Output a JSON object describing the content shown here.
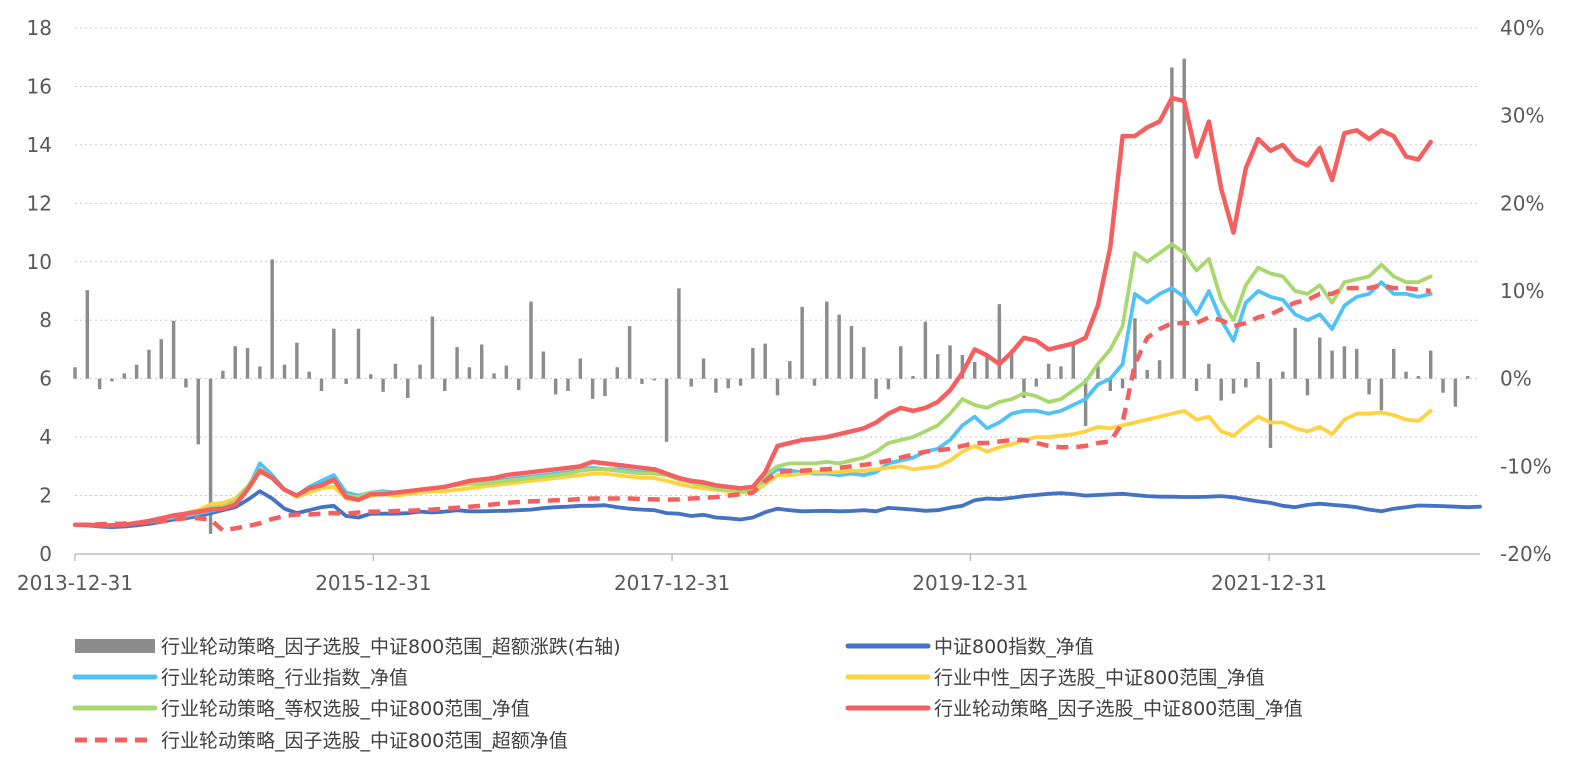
{
  "chart_data": {
    "type": "line",
    "x_start": "2013-12-31",
    "x_end": "2023-05-31",
    "x_tick_labels": [
      "2013-12-31",
      "2015-12-31",
      "2017-12-31",
      "2019-12-31",
      "2021-12-31"
    ],
    "x_tick_dates": [
      "2013-12-31",
      "2015-12-31",
      "2017-12-31",
      "2019-12-31",
      "2021-12-31"
    ],
    "ylim": [
      0,
      18
    ],
    "y_ticks": [
      0,
      2,
      4,
      6,
      8,
      10,
      12,
      14,
      16,
      18
    ],
    "y_tick_labels": [
      "0",
      "2",
      "4",
      "6",
      "8",
      "10",
      "12",
      "14",
      "16",
      "18"
    ],
    "y2lim": [
      -0.2,
      0.4
    ],
    "y2_ticks": [
      -0.2,
      -0.1,
      0,
      0.1,
      0.2,
      0.3,
      0.4
    ],
    "y2_tick_labels": [
      "-20%",
      "-10%",
      "0%",
      "10%",
      "20%",
      "30%",
      "40%"
    ],
    "grid": "horizontal-dotted",
    "legend_position": "bottom",
    "bars": {
      "name": "行业轮动策略_因子选股_中证800范围_超额涨跌(右轴)",
      "color": "#8c8c8c",
      "axis": "right",
      "values": [
        0.013,
        0.101,
        -0.012,
        -0.003,
        0.006,
        0.016,
        0.033,
        0.045,
        0.066,
        -0.01,
        -0.075,
        -0.177,
        0.009,
        0.037,
        0.035,
        0.014,
        0.136,
        0.016,
        0.041,
        0.008,
        -0.014,
        0.057,
        -0.006,
        0.057,
        0.005,
        -0.015,
        0.017,
        -0.022,
        0.016,
        0.071,
        -0.014,
        0.036,
        0.013,
        0.039,
        0.006,
        0.015,
        -0.013,
        0.088,
        0.031,
        -0.018,
        -0.014,
        0.023,
        -0.023,
        -0.02,
        0.013,
        0.06,
        -0.006,
        -0.002,
        -0.072,
        0.103,
        -0.009,
        0.023,
        -0.016,
        -0.011,
        -0.008,
        0.035,
        0.04,
        -0.019,
        0.02,
        0.082,
        -0.008,
        0.088,
        0.073,
        0.06,
        0.036,
        -0.023,
        -0.012,
        0.037,
        0.003,
        0.065,
        0.028,
        0.038,
        0.027,
        0.019,
        0.027,
        0.085,
        0.033,
        -0.022,
        -0.009,
        0.017,
        0.014,
        0.038,
        -0.054,
        0.014,
        -0.014,
        -0.011,
        0.069,
        0.01,
        0.021,
        0.355,
        0.365,
        -0.014,
        0.017,
        -0.025,
        -0.017,
        -0.01,
        0.019,
        -0.079,
        0.008,
        0.058,
        -0.019,
        0.047,
        0.032,
        0.037,
        0.034,
        -0.018,
        -0.036,
        0.034,
        0.008,
        0.003,
        0.032,
        -0.016,
        -0.032,
        0.003
      ]
    },
    "series": [
      {
        "name": "中证800指数_净值",
        "color": "#4472c4",
        "style": "solid",
        "values": [
          1,
          0.98,
          0.94,
          0.92,
          0.94,
          0.98,
          1.03,
          1.1,
          1.18,
          1.22,
          1.3,
          1.4,
          1.5,
          1.6,
          1.85,
          2.15,
          1.9,
          1.55,
          1.4,
          1.5,
          1.6,
          1.65,
          1.3,
          1.25,
          1.38,
          1.38,
          1.38,
          1.4,
          1.45,
          1.42,
          1.45,
          1.5,
          1.46,
          1.46,
          1.47,
          1.48,
          1.5,
          1.52,
          1.57,
          1.6,
          1.62,
          1.65,
          1.65,
          1.67,
          1.6,
          1.55,
          1.52,
          1.5,
          1.4,
          1.38,
          1.3,
          1.34,
          1.25,
          1.22,
          1.18,
          1.25,
          1.43,
          1.55,
          1.5,
          1.46,
          1.47,
          1.48,
          1.46,
          1.47,
          1.5,
          1.46,
          1.58,
          1.55,
          1.52,
          1.48,
          1.5,
          1.58,
          1.65,
          1.84,
          1.9,
          1.88,
          1.92,
          1.98,
          2.02,
          2.06,
          2.08,
          2.05,
          2.0,
          2.02,
          2.04,
          2.06,
          2.02,
          1.98,
          1.96,
          1.96,
          1.95,
          1.95,
          1.96,
          1.98,
          1.94,
          1.87,
          1.8,
          1.75,
          1.65,
          1.6,
          1.68,
          1.72,
          1.68,
          1.65,
          1.6,
          1.52,
          1.46,
          1.55,
          1.6,
          1.66,
          1.65,
          1.64,
          1.62,
          1.6,
          1.62
        ]
      },
      {
        "name": "行业轮动策略_行业指数_净值",
        "color": "#4fc3f7",
        "style": "solid",
        "values": [
          1,
          1,
          0.98,
          0.98,
          0.99,
          1.05,
          1.1,
          1.18,
          1.25,
          1.3,
          1.38,
          1.48,
          1.55,
          1.75,
          2.2,
          3.1,
          2.7,
          2.2,
          2.0,
          2.3,
          2.5,
          2.7,
          2.1,
          2.0,
          2.1,
          2.15,
          2.1,
          2.15,
          2.2,
          2.25,
          2.3,
          2.4,
          2.45,
          2.45,
          2.5,
          2.55,
          2.6,
          2.65,
          2.7,
          2.75,
          2.8,
          2.9,
          2.95,
          2.9,
          2.9,
          2.85,
          2.8,
          2.8,
          2.75,
          2.6,
          2.5,
          2.4,
          2.3,
          2.25,
          2.2,
          2.2,
          2.6,
          2.9,
          2.85,
          2.8,
          2.75,
          2.75,
          2.7,
          2.75,
          2.7,
          2.8,
          3.1,
          3.2,
          3.3,
          3.5,
          3.6,
          3.9,
          4.4,
          4.7,
          4.3,
          4.5,
          4.8,
          4.9,
          4.9,
          4.8,
          4.9,
          5.1,
          5.3,
          5.8,
          6.0,
          6.5,
          8.9,
          8.6,
          8.9,
          9.1,
          8.8,
          8.2,
          9.0,
          8.0,
          7.3,
          8.6,
          9.0,
          8.8,
          8.7,
          8.2,
          8.0,
          8.2,
          7.7,
          8.5,
          8.8,
          8.9,
          9.3,
          8.9,
          8.9,
          8.8,
          8.9
        ]
      },
      {
        "name": "行业中性_因子选股_中证800范围_净值",
        "color": "#ffd23f",
        "style": "solid",
        "values": [
          1,
          0.99,
          0.98,
          0.98,
          1.0,
          1.05,
          1.12,
          1.2,
          1.3,
          1.4,
          1.5,
          1.7,
          1.75,
          1.9,
          2.3,
          2.8,
          2.6,
          2.2,
          1.95,
          2.1,
          2.25,
          2.3,
          1.9,
          1.85,
          2.0,
          2.05,
          2.0,
          2.05,
          2.1,
          2.15,
          2.15,
          2.2,
          2.25,
          2.3,
          2.35,
          2.4,
          2.45,
          2.5,
          2.55,
          2.6,
          2.65,
          2.7,
          2.75,
          2.75,
          2.7,
          2.65,
          2.6,
          2.6,
          2.5,
          2.4,
          2.3,
          2.25,
          2.2,
          2.15,
          2.1,
          2.1,
          2.4,
          2.7,
          2.7,
          2.75,
          2.8,
          2.8,
          2.8,
          2.85,
          2.85,
          2.9,
          2.95,
          3.0,
          2.9,
          2.95,
          3.0,
          3.2,
          3.5,
          3.7,
          3.5,
          3.65,
          3.75,
          3.9,
          4.0,
          4.0,
          4.05,
          4.1,
          4.2,
          4.35,
          4.3,
          4.4,
          4.5,
          4.6,
          4.7,
          4.8,
          4.9,
          4.6,
          4.7,
          4.2,
          4.05,
          4.4,
          4.7,
          4.5,
          4.5,
          4.3,
          4.2,
          4.35,
          4.1,
          4.6,
          4.8,
          4.8,
          4.85,
          4.75,
          4.6,
          4.55,
          4.9
        ]
      },
      {
        "name": "行业轮动策略_等权选股_中证800范围_净值",
        "color": "#a9d86e",
        "style": "solid",
        "values": [
          1,
          1,
          0.99,
          0.99,
          1.01,
          1.07,
          1.13,
          1.22,
          1.3,
          1.35,
          1.45,
          1.58,
          1.62,
          1.8,
          2.3,
          2.9,
          2.6,
          2.2,
          2.0,
          2.2,
          2.35,
          2.5,
          2.0,
          1.95,
          2.1,
          2.1,
          2.1,
          2.15,
          2.2,
          2.25,
          2.3,
          2.35,
          2.4,
          2.4,
          2.45,
          2.5,
          2.55,
          2.6,
          2.65,
          2.7,
          2.75,
          2.85,
          2.9,
          2.9,
          2.85,
          2.8,
          2.75,
          2.75,
          2.7,
          2.55,
          2.45,
          2.35,
          2.25,
          2.2,
          2.15,
          2.15,
          2.7,
          3.0,
          3.1,
          3.1,
          3.1,
          3.15,
          3.1,
          3.2,
          3.3,
          3.5,
          3.8,
          3.9,
          4.0,
          4.2,
          4.4,
          4.8,
          5.3,
          5.1,
          5.0,
          5.2,
          5.3,
          5.5,
          5.4,
          5.2,
          5.3,
          5.6,
          5.9,
          6.5,
          7.0,
          7.8,
          10.3,
          10.0,
          10.3,
          10.6,
          10.3,
          9.7,
          10.1,
          8.7,
          8.0,
          9.2,
          9.8,
          9.6,
          9.5,
          9.0,
          8.9,
          9.2,
          8.6,
          9.3,
          9.4,
          9.5,
          9.9,
          9.5,
          9.3,
          9.3,
          9.5
        ]
      },
      {
        "name": "行业轮动策略_因子选股_中证800范围_净值",
        "color": "#f4605f",
        "style": "solid",
        "values": [
          1,
          1,
          0.98,
          0.98,
          1.0,
          1.06,
          1.13,
          1.22,
          1.32,
          1.38,
          1.45,
          1.52,
          1.55,
          1.68,
          2.2,
          2.85,
          2.6,
          2.2,
          2.0,
          2.25,
          2.35,
          2.55,
          1.95,
          1.85,
          2.05,
          2.05,
          2.1,
          2.15,
          2.2,
          2.25,
          2.3,
          2.4,
          2.5,
          2.55,
          2.6,
          2.7,
          2.75,
          2.8,
          2.85,
          2.9,
          2.95,
          3.0,
          3.15,
          3.1,
          3.05,
          3.0,
          2.95,
          2.9,
          2.75,
          2.6,
          2.5,
          2.45,
          2.35,
          2.3,
          2.25,
          2.3,
          2.8,
          3.7,
          3.8,
          3.9,
          3.95,
          4.0,
          4.1,
          4.2,
          4.3,
          4.5,
          4.8,
          5.0,
          4.9,
          5.0,
          5.2,
          5.6,
          6.2,
          7.0,
          6.8,
          6.5,
          6.9,
          7.4,
          7.3,
          7.0,
          7.1,
          7.2,
          7.4,
          8.5,
          10.5,
          14.3,
          14.3,
          14.6,
          14.8,
          15.6,
          15.5,
          13.6,
          14.8,
          12.5,
          11.0,
          13.2,
          14.2,
          13.8,
          14.0,
          13.5,
          13.3,
          13.9,
          12.8,
          14.4,
          14.5,
          14.2,
          14.5,
          14.3,
          13.6,
          13.5,
          14.1
        ]
      },
      {
        "name": "行业轮动策略_因子选股_中证800范围_超额净值",
        "color": "#f4605f",
        "style": "dashed",
        "axis": "left",
        "values": [
          1,
          1,
          1.02,
          1.03,
          1.04,
          1.06,
          1.08,
          1.12,
          1.18,
          1.22,
          1.22,
          1.18,
          0.8,
          0.88,
          0.95,
          1.05,
          1.2,
          1.3,
          1.35,
          1.35,
          1.38,
          1.4,
          1.38,
          1.42,
          1.45,
          1.45,
          1.47,
          1.48,
          1.5,
          1.52,
          1.55,
          1.58,
          1.62,
          1.65,
          1.7,
          1.75,
          1.78,
          1.8,
          1.82,
          1.84,
          1.85,
          1.88,
          1.9,
          1.9,
          1.9,
          1.9,
          1.88,
          1.87,
          1.86,
          1.87,
          1.9,
          1.92,
          1.95,
          2.0,
          2.05,
          2.1,
          2.5,
          2.8,
          2.85,
          2.85,
          2.88,
          2.9,
          2.95,
          3.0,
          3.05,
          3.1,
          3.2,
          3.3,
          3.4,
          3.5,
          3.55,
          3.6,
          3.7,
          3.8,
          3.8,
          3.85,
          3.9,
          3.9,
          3.8,
          3.7,
          3.65,
          3.65,
          3.7,
          3.8,
          3.85,
          4.5,
          6.5,
          7.4,
          7.7,
          7.9,
          7.9,
          7.9,
          8.1,
          8.0,
          7.8,
          7.9,
          8.1,
          8.2,
          8.4,
          8.6,
          8.7,
          8.9,
          8.9,
          9.1,
          9.1,
          9.1,
          9.2,
          9.1,
          9.1,
          9.05,
          9.0
        ]
      }
    ],
    "legend": [
      {
        "label": "行业轮动策略_因子选股_中证800范围_超额涨跌(右轴)",
        "kind": "bar",
        "color": "#8c8c8c"
      },
      {
        "label": "中证800指数_净值",
        "kind": "line",
        "color": "#4472c4"
      },
      {
        "label": "行业轮动策略_行业指数_净值",
        "kind": "line",
        "color": "#4fc3f7"
      },
      {
        "label": "行业中性_因子选股_中证800范围_净值",
        "kind": "line",
        "color": "#ffd23f"
      },
      {
        "label": "行业轮动策略_等权选股_中证800范围_净值",
        "kind": "line",
        "color": "#a9d86e"
      },
      {
        "label": "行业轮动策略_因子选股_中证800范围_净值",
        "kind": "line",
        "color": "#f4605f"
      },
      {
        "label": "行业轮动策略_因子选股_中证800范围_超额净值",
        "kind": "dash",
        "color": "#f4605f"
      }
    ]
  }
}
